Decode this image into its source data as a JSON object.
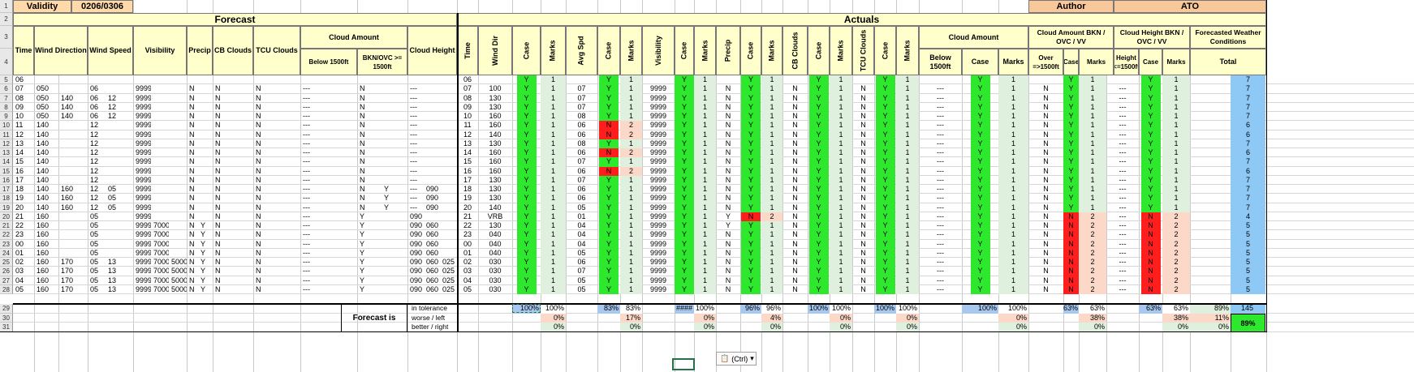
{
  "title_row": {
    "validity_label": "Validity",
    "validity_value": "0206/0306",
    "author": "Author",
    "ato": "ATO"
  },
  "groups": {
    "forecast": "Forecast",
    "actuals": "Actuals"
  },
  "forecast_headers": {
    "time": "Time",
    "wind_dir": "Wind Direction",
    "wind_speed": "Wind Speed",
    "visibility": "Visibility",
    "precip": "Precip",
    "cb": "CB Clouds",
    "tcu": "TCU Clouds",
    "cloud_amount": "Cloud Amount",
    "below1500": "Below 1500ft",
    "bknovc": "BKN/OVC >= 1500ft",
    "cloud_height": "Cloud Height"
  },
  "actual_headers": {
    "time": "Time",
    "wind_dir": "Wind Dir",
    "case": "Case",
    "marks": "Marks",
    "avg_spd": "Avg Spd",
    "visibility": "Visibility",
    "precip": "Precip",
    "cb": "CB Clouds",
    "tcu": "TCU Clouds",
    "cloud_amount": "Cloud Amount",
    "below1500": "Below 1500ft",
    "ca_bkn": "Cloud Amount BKN / OVC / VV",
    "over1500": "Over =>1500ft",
    "ch_bkn": "Cloud Height BKN / OVC / VV",
    "height1500": "Height <=1500ft",
    "fwc": "Forecasted Weather Conditions",
    "total": "Total"
  },
  "row_numbers": [
    "1",
    "2",
    "3",
    "4",
    "5",
    "6",
    "7",
    "8",
    "9",
    "10",
    "11",
    "12",
    "13",
    "14",
    "15",
    "16",
    "17",
    "18",
    "19",
    "20",
    "21",
    "22",
    "23",
    "24",
    "25",
    "26",
    "27",
    "28",
    "29",
    "30",
    "31"
  ],
  "forecast_rows": [
    [
      "06",
      "",
      "",
      "",
      "",
      "",
      "",
      "",
      "",
      "",
      "",
      "",
      "",
      "",
      "",
      "",
      "",
      "",
      ""
    ],
    [
      "07",
      "050",
      "",
      "06",
      "",
      "9999",
      "",
      "",
      "N",
      "",
      "N",
      "N",
      "---",
      "N",
      "",
      "---",
      "",
      "",
      ""
    ],
    [
      "08",
      "050",
      "140",
      "06",
      "12",
      "9999",
      "",
      "",
      "N",
      "",
      "N",
      "N",
      "---",
      "N",
      "",
      "---",
      "",
      "",
      ""
    ],
    [
      "09",
      "050",
      "140",
      "06",
      "12",
      "9999",
      "",
      "",
      "N",
      "",
      "N",
      "N",
      "---",
      "N",
      "",
      "---",
      "",
      "",
      ""
    ],
    [
      "10",
      "050",
      "140",
      "06",
      "12",
      "9999",
      "",
      "",
      "N",
      "",
      "N",
      "N",
      "---",
      "N",
      "",
      "---",
      "",
      "",
      ""
    ],
    [
      "11",
      "140",
      "",
      "12",
      "",
      "9999",
      "",
      "",
      "N",
      "",
      "N",
      "N",
      "---",
      "N",
      "",
      "---",
      "",
      "",
      ""
    ],
    [
      "12",
      "140",
      "",
      "12",
      "",
      "9999",
      "",
      "",
      "N",
      "",
      "N",
      "N",
      "---",
      "N",
      "",
      "---",
      "",
      "",
      ""
    ],
    [
      "13",
      "140",
      "",
      "12",
      "",
      "9999",
      "",
      "",
      "N",
      "",
      "N",
      "N",
      "---",
      "N",
      "",
      "---",
      "",
      "",
      ""
    ],
    [
      "14",
      "140",
      "",
      "12",
      "",
      "9999",
      "",
      "",
      "N",
      "",
      "N",
      "N",
      "---",
      "N",
      "",
      "---",
      "",
      "",
      ""
    ],
    [
      "15",
      "140",
      "",
      "12",
      "",
      "9999",
      "",
      "",
      "N",
      "",
      "N",
      "N",
      "---",
      "N",
      "",
      "---",
      "",
      "",
      ""
    ],
    [
      "16",
      "140",
      "",
      "12",
      "",
      "9999",
      "",
      "",
      "N",
      "",
      "N",
      "N",
      "---",
      "N",
      "",
      "---",
      "",
      "",
      ""
    ],
    [
      "17",
      "140",
      "",
      "12",
      "",
      "9999",
      "",
      "",
      "N",
      "",
      "N",
      "N",
      "---",
      "N",
      "",
      "---",
      "",
      "",
      ""
    ],
    [
      "18",
      "140",
      "160",
      "12",
      "05",
      "9999",
      "",
      "",
      "N",
      "",
      "N",
      "N",
      "---",
      "N",
      "Y",
      "---",
      "090",
      "",
      ""
    ],
    [
      "19",
      "140",
      "160",
      "12",
      "05",
      "9999",
      "",
      "",
      "N",
      "",
      "N",
      "N",
      "---",
      "N",
      "Y",
      "---",
      "090",
      "",
      ""
    ],
    [
      "20",
      "140",
      "160",
      "12",
      "05",
      "9999",
      "",
      "",
      "N",
      "",
      "N",
      "N",
      "---",
      "N",
      "Y",
      "---",
      "090",
      "",
      ""
    ],
    [
      "21",
      "160",
      "",
      "05",
      "",
      "9999",
      "",
      "",
      "N",
      "",
      "N",
      "N",
      "---",
      "Y",
      "",
      "090",
      "",
      "",
      ""
    ],
    [
      "22",
      "160",
      "",
      "05",
      "",
      "9999",
      "7000",
      "",
      "N",
      "Y",
      "N",
      "N",
      "---",
      "Y",
      "",
      "090",
      "060",
      "",
      ""
    ],
    [
      "23",
      "160",
      "",
      "05",
      "",
      "9999",
      "7000",
      "",
      "N",
      "Y",
      "N",
      "N",
      "---",
      "Y",
      "",
      "090",
      "060",
      "",
      ""
    ],
    [
      "00",
      "160",
      "",
      "05",
      "",
      "9999",
      "7000",
      "",
      "N",
      "Y",
      "N",
      "N",
      "---",
      "Y",
      "",
      "090",
      "060",
      "",
      ""
    ],
    [
      "01",
      "160",
      "",
      "05",
      "",
      "9999",
      "7000",
      "",
      "N",
      "Y",
      "N",
      "N",
      "---",
      "Y",
      "",
      "090",
      "060",
      "",
      ""
    ],
    [
      "02",
      "160",
      "170",
      "05",
      "13",
      "9999",
      "7000",
      "5000",
      "N",
      "Y",
      "N",
      "N",
      "---",
      "Y",
      "",
      "090",
      "060",
      "025",
      ""
    ],
    [
      "03",
      "160",
      "170",
      "05",
      "13",
      "9999",
      "7000",
      "5000",
      "N",
      "Y",
      "N",
      "N",
      "---",
      "Y",
      "",
      "090",
      "060",
      "025",
      ""
    ],
    [
      "04",
      "160",
      "170",
      "05",
      "13",
      "9999",
      "7000",
      "5000",
      "N",
      "Y",
      "N",
      "N",
      "---",
      "Y",
      "",
      "090",
      "060",
      "025",
      ""
    ],
    [
      "05",
      "160",
      "170",
      "05",
      "13",
      "9999",
      "7000",
      "5000",
      "N",
      "Y",
      "N",
      "N",
      "---",
      "Y",
      "",
      "090",
      "060",
      "025",
      ""
    ]
  ],
  "actual_rows": [
    [
      "06",
      "",
      "Y",
      "1",
      "",
      "Y",
      "1",
      "",
      "Y",
      "1",
      "",
      "Y",
      "1",
      "",
      "Y",
      "1",
      "",
      "Y",
      "1",
      "",
      "Y",
      "1",
      "",
      "Y",
      "1",
      "",
      "Y",
      "1",
      "",
      "7"
    ],
    [
      "07",
      "100",
      "Y",
      "1",
      "07",
      "Y",
      "1",
      "9999",
      "Y",
      "1",
      "N",
      "Y",
      "1",
      "N",
      "Y",
      "1",
      "N",
      "Y",
      "1",
      "---",
      "Y",
      "1",
      "N",
      "Y",
      "1",
      "---",
      "Y",
      "1",
      "",
      "7"
    ],
    [
      "08",
      "130",
      "Y",
      "1",
      "07",
      "Y",
      "1",
      "9999",
      "Y",
      "1",
      "N",
      "Y",
      "1",
      "N",
      "Y",
      "1",
      "N",
      "Y",
      "1",
      "---",
      "Y",
      "1",
      "N",
      "Y",
      "1",
      "---",
      "Y",
      "1",
      "",
      "7"
    ],
    [
      "09",
      "130",
      "Y",
      "1",
      "07",
      "Y",
      "1",
      "9999",
      "Y",
      "1",
      "N",
      "Y",
      "1",
      "N",
      "Y",
      "1",
      "N",
      "Y",
      "1",
      "---",
      "Y",
      "1",
      "N",
      "Y",
      "1",
      "---",
      "Y",
      "1",
      "",
      "7"
    ],
    [
      "10",
      "160",
      "Y",
      "1",
      "08",
      "Y",
      "1",
      "9999",
      "Y",
      "1",
      "N",
      "Y",
      "1",
      "N",
      "Y",
      "1",
      "N",
      "Y",
      "1",
      "---",
      "Y",
      "1",
      "N",
      "Y",
      "1",
      "---",
      "Y",
      "1",
      "",
      "7"
    ],
    [
      "11",
      "160",
      "Y",
      "1",
      "06",
      "N",
      "2",
      "9999",
      "Y",
      "1",
      "N",
      "Y",
      "1",
      "N",
      "Y",
      "1",
      "N",
      "Y",
      "1",
      "---",
      "Y",
      "1",
      "N",
      "Y",
      "1",
      "---",
      "Y",
      "1",
      "",
      "6"
    ],
    [
      "12",
      "140",
      "Y",
      "1",
      "06",
      "N",
      "2",
      "9999",
      "Y",
      "1",
      "N",
      "Y",
      "1",
      "N",
      "Y",
      "1",
      "N",
      "Y",
      "1",
      "---",
      "Y",
      "1",
      "N",
      "Y",
      "1",
      "---",
      "Y",
      "1",
      "",
      "6"
    ],
    [
      "13",
      "130",
      "Y",
      "1",
      "08",
      "Y",
      "1",
      "9999",
      "Y",
      "1",
      "N",
      "Y",
      "1",
      "N",
      "Y",
      "1",
      "N",
      "Y",
      "1",
      "---",
      "Y",
      "1",
      "N",
      "Y",
      "1",
      "---",
      "Y",
      "1",
      "",
      "7"
    ],
    [
      "14",
      "160",
      "Y",
      "1",
      "06",
      "N",
      "2",
      "9999",
      "Y",
      "1",
      "N",
      "Y",
      "1",
      "N",
      "Y",
      "1",
      "N",
      "Y",
      "1",
      "---",
      "Y",
      "1",
      "N",
      "Y",
      "1",
      "---",
      "Y",
      "1",
      "",
      "6"
    ],
    [
      "15",
      "160",
      "Y",
      "1",
      "07",
      "Y",
      "1",
      "9999",
      "Y",
      "1",
      "N",
      "Y",
      "1",
      "N",
      "Y",
      "1",
      "N",
      "Y",
      "1",
      "---",
      "Y",
      "1",
      "N",
      "Y",
      "1",
      "---",
      "Y",
      "1",
      "",
      "7"
    ],
    [
      "16",
      "160",
      "Y",
      "1",
      "06",
      "N",
      "2",
      "9999",
      "Y",
      "1",
      "N",
      "Y",
      "1",
      "N",
      "Y",
      "1",
      "N",
      "Y",
      "1",
      "---",
      "Y",
      "1",
      "N",
      "Y",
      "1",
      "---",
      "Y",
      "1",
      "",
      "6"
    ],
    [
      "17",
      "130",
      "Y",
      "1",
      "07",
      "Y",
      "1",
      "9999",
      "Y",
      "1",
      "N",
      "Y",
      "1",
      "N",
      "Y",
      "1",
      "N",
      "Y",
      "1",
      "---",
      "Y",
      "1",
      "N",
      "Y",
      "1",
      "---",
      "Y",
      "1",
      "",
      "7"
    ],
    [
      "18",
      "130",
      "Y",
      "1",
      "06",
      "Y",
      "1",
      "9999",
      "Y",
      "1",
      "N",
      "Y",
      "1",
      "N",
      "Y",
      "1",
      "N",
      "Y",
      "1",
      "---",
      "Y",
      "1",
      "N",
      "Y",
      "1",
      "---",
      "Y",
      "1",
      "",
      "7"
    ],
    [
      "19",
      "130",
      "Y",
      "1",
      "06",
      "Y",
      "1",
      "9999",
      "Y",
      "1",
      "N",
      "Y",
      "1",
      "N",
      "Y",
      "1",
      "N",
      "Y",
      "1",
      "---",
      "Y",
      "1",
      "N",
      "Y",
      "1",
      "---",
      "Y",
      "1",
      "",
      "7"
    ],
    [
      "20",
      "140",
      "Y",
      "1",
      "05",
      "Y",
      "1",
      "9999",
      "Y",
      "1",
      "N",
      "Y",
      "1",
      "N",
      "Y",
      "1",
      "N",
      "Y",
      "1",
      "---",
      "Y",
      "1",
      "N",
      "Y",
      "1",
      "---",
      "Y",
      "1",
      "",
      "7"
    ],
    [
      "21",
      "VRB",
      "Y",
      "1",
      "01",
      "Y",
      "1",
      "9999",
      "Y",
      "1",
      "Y",
      "N",
      "2",
      "N",
      "Y",
      "1",
      "N",
      "Y",
      "1",
      "---",
      "Y",
      "1",
      "N",
      "N",
      "2",
      "---",
      "N",
      "2",
      "",
      "4"
    ],
    [
      "22",
      "130",
      "Y",
      "1",
      "04",
      "Y",
      "1",
      "9999",
      "Y",
      "1",
      "Y",
      "Y",
      "1",
      "N",
      "Y",
      "1",
      "N",
      "Y",
      "1",
      "---",
      "Y",
      "1",
      "N",
      "N",
      "2",
      "---",
      "N",
      "2",
      "",
      "5"
    ],
    [
      "23",
      "040",
      "Y",
      "1",
      "04",
      "Y",
      "1",
      "9999",
      "Y",
      "1",
      "N",
      "Y",
      "1",
      "N",
      "Y",
      "1",
      "N",
      "Y",
      "1",
      "---",
      "Y",
      "1",
      "N",
      "N",
      "2",
      "---",
      "N",
      "2",
      "",
      "5"
    ],
    [
      "00",
      "040",
      "Y",
      "1",
      "04",
      "Y",
      "1",
      "9999",
      "Y",
      "1",
      "N",
      "Y",
      "1",
      "N",
      "Y",
      "1",
      "N",
      "Y",
      "1",
      "---",
      "Y",
      "1",
      "N",
      "N",
      "2",
      "---",
      "N",
      "2",
      "",
      "5"
    ],
    [
      "01",
      "040",
      "Y",
      "1",
      "05",
      "Y",
      "1",
      "9999",
      "Y",
      "1",
      "N",
      "Y",
      "1",
      "N",
      "Y",
      "1",
      "N",
      "Y",
      "1",
      "---",
      "Y",
      "1",
      "N",
      "N",
      "2",
      "---",
      "N",
      "2",
      "",
      "5"
    ],
    [
      "02",
      "030",
      "Y",
      "1",
      "06",
      "Y",
      "1",
      "9999",
      "Y",
      "1",
      "N",
      "Y",
      "1",
      "N",
      "Y",
      "1",
      "N",
      "Y",
      "1",
      "---",
      "Y",
      "1",
      "N",
      "N",
      "2",
      "---",
      "N",
      "2",
      "",
      "5"
    ],
    [
      "03",
      "030",
      "Y",
      "1",
      "07",
      "Y",
      "1",
      "9999",
      "Y",
      "1",
      "N",
      "Y",
      "1",
      "N",
      "Y",
      "1",
      "N",
      "Y",
      "1",
      "---",
      "Y",
      "1",
      "N",
      "N",
      "2",
      "---",
      "N",
      "2",
      "",
      "5"
    ],
    [
      "04",
      "030",
      "Y",
      "1",
      "05",
      "Y",
      "1",
      "9999",
      "Y",
      "1",
      "N",
      "Y",
      "1",
      "N",
      "Y",
      "1",
      "N",
      "Y",
      "1",
      "---",
      "Y",
      "1",
      "N",
      "N",
      "2",
      "---",
      "N",
      "2",
      "",
      "5"
    ],
    [
      "05",
      "030",
      "Y",
      "1",
      "05",
      "Y",
      "1",
      "9999",
      "Y",
      "1",
      "N",
      "Y",
      "1",
      "N",
      "Y",
      "1",
      "N",
      "Y",
      "1",
      "---",
      "Y",
      "1",
      "N",
      "N",
      "2",
      "---",
      "N",
      "2",
      "",
      "5"
    ]
  ],
  "summary": {
    "forecast_is": "Forecast is",
    "labels": [
      "in tolerance",
      "worse / left",
      "better / right"
    ],
    "row29": [
      "100%",
      "100%",
      "83%",
      "83%",
      "####",
      "100%",
      "96%",
      "96%",
      "100%",
      "100%",
      "100%",
      "100%",
      "100%",
      "100%",
      "63%",
      "63%",
      "63%",
      "63%",
      "89%",
      "145"
    ],
    "row30": [
      "",
      "0%",
      "",
      "17%",
      "",
      "0%",
      "",
      "4%",
      "",
      "0%",
      "",
      "0%",
      "",
      "0%",
      "",
      "38%",
      "",
      "38%",
      "11%",
      ""
    ],
    "row31": [
      "",
      "0%",
      "",
      "0%",
      "",
      "0%",
      "",
      "0%",
      "",
      "0%",
      "",
      "0%",
      "",
      "0%",
      "",
      "0%",
      "",
      "0%",
      "0%",
      "89%"
    ]
  },
  "popup": {
    "label": "(Ctrl)",
    "icon": "paste-options-icon"
  },
  "colors": {
    "header": "#ffffcc",
    "ok": "#2ee82e",
    "bad": "#ff1e1e",
    "marks_ok": "#e0f0de",
    "marks_bad": "#fcd8c8",
    "summary": "#a9c8f0",
    "total": "#8ec9f5",
    "final": "#2ee82e"
  }
}
